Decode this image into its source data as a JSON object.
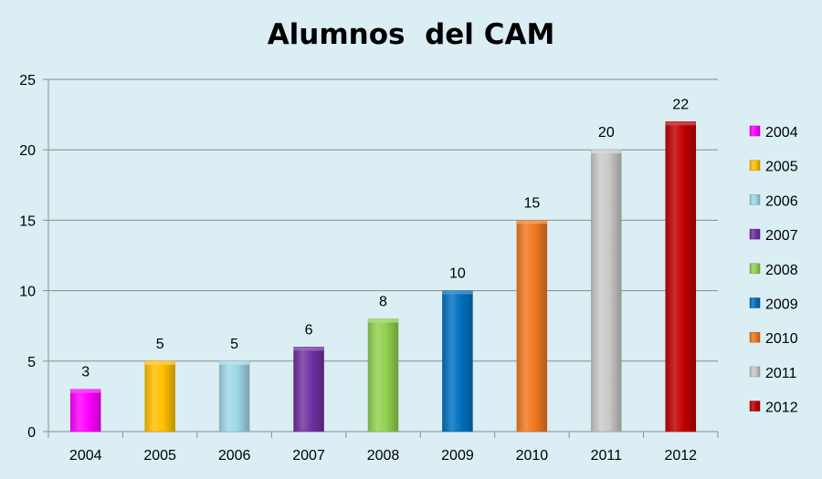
{
  "chart_data": {
    "type": "bar",
    "title": "Alumnos  del CAM",
    "xlabel": "",
    "ylabel": "",
    "categories": [
      "2004",
      "2005",
      "2006",
      "2007",
      "2008",
      "2009",
      "2010",
      "2011",
      "2012"
    ],
    "values": [
      3,
      5,
      5,
      6,
      8,
      10,
      15,
      20,
      22
    ],
    "data_labels": [
      "3",
      "5",
      "5",
      "6",
      "8",
      "10",
      "15",
      "20",
      "22"
    ],
    "colors": [
      "#ff00ff",
      "#ffc000",
      "#9fd7e6",
      "#7030a0",
      "#92d050",
      "#0070c0",
      "#f07820",
      "#c8c8c8",
      "#c00000"
    ],
    "ylim": [
      0,
      25
    ],
    "yticks": [
      0,
      5,
      10,
      15,
      20,
      25
    ],
    "grid": true,
    "legend": {
      "placement": "right",
      "entries": [
        "2004",
        "2005",
        "2006",
        "2007",
        "2008",
        "2009",
        "2010",
        "2011",
        "2012"
      ]
    }
  }
}
